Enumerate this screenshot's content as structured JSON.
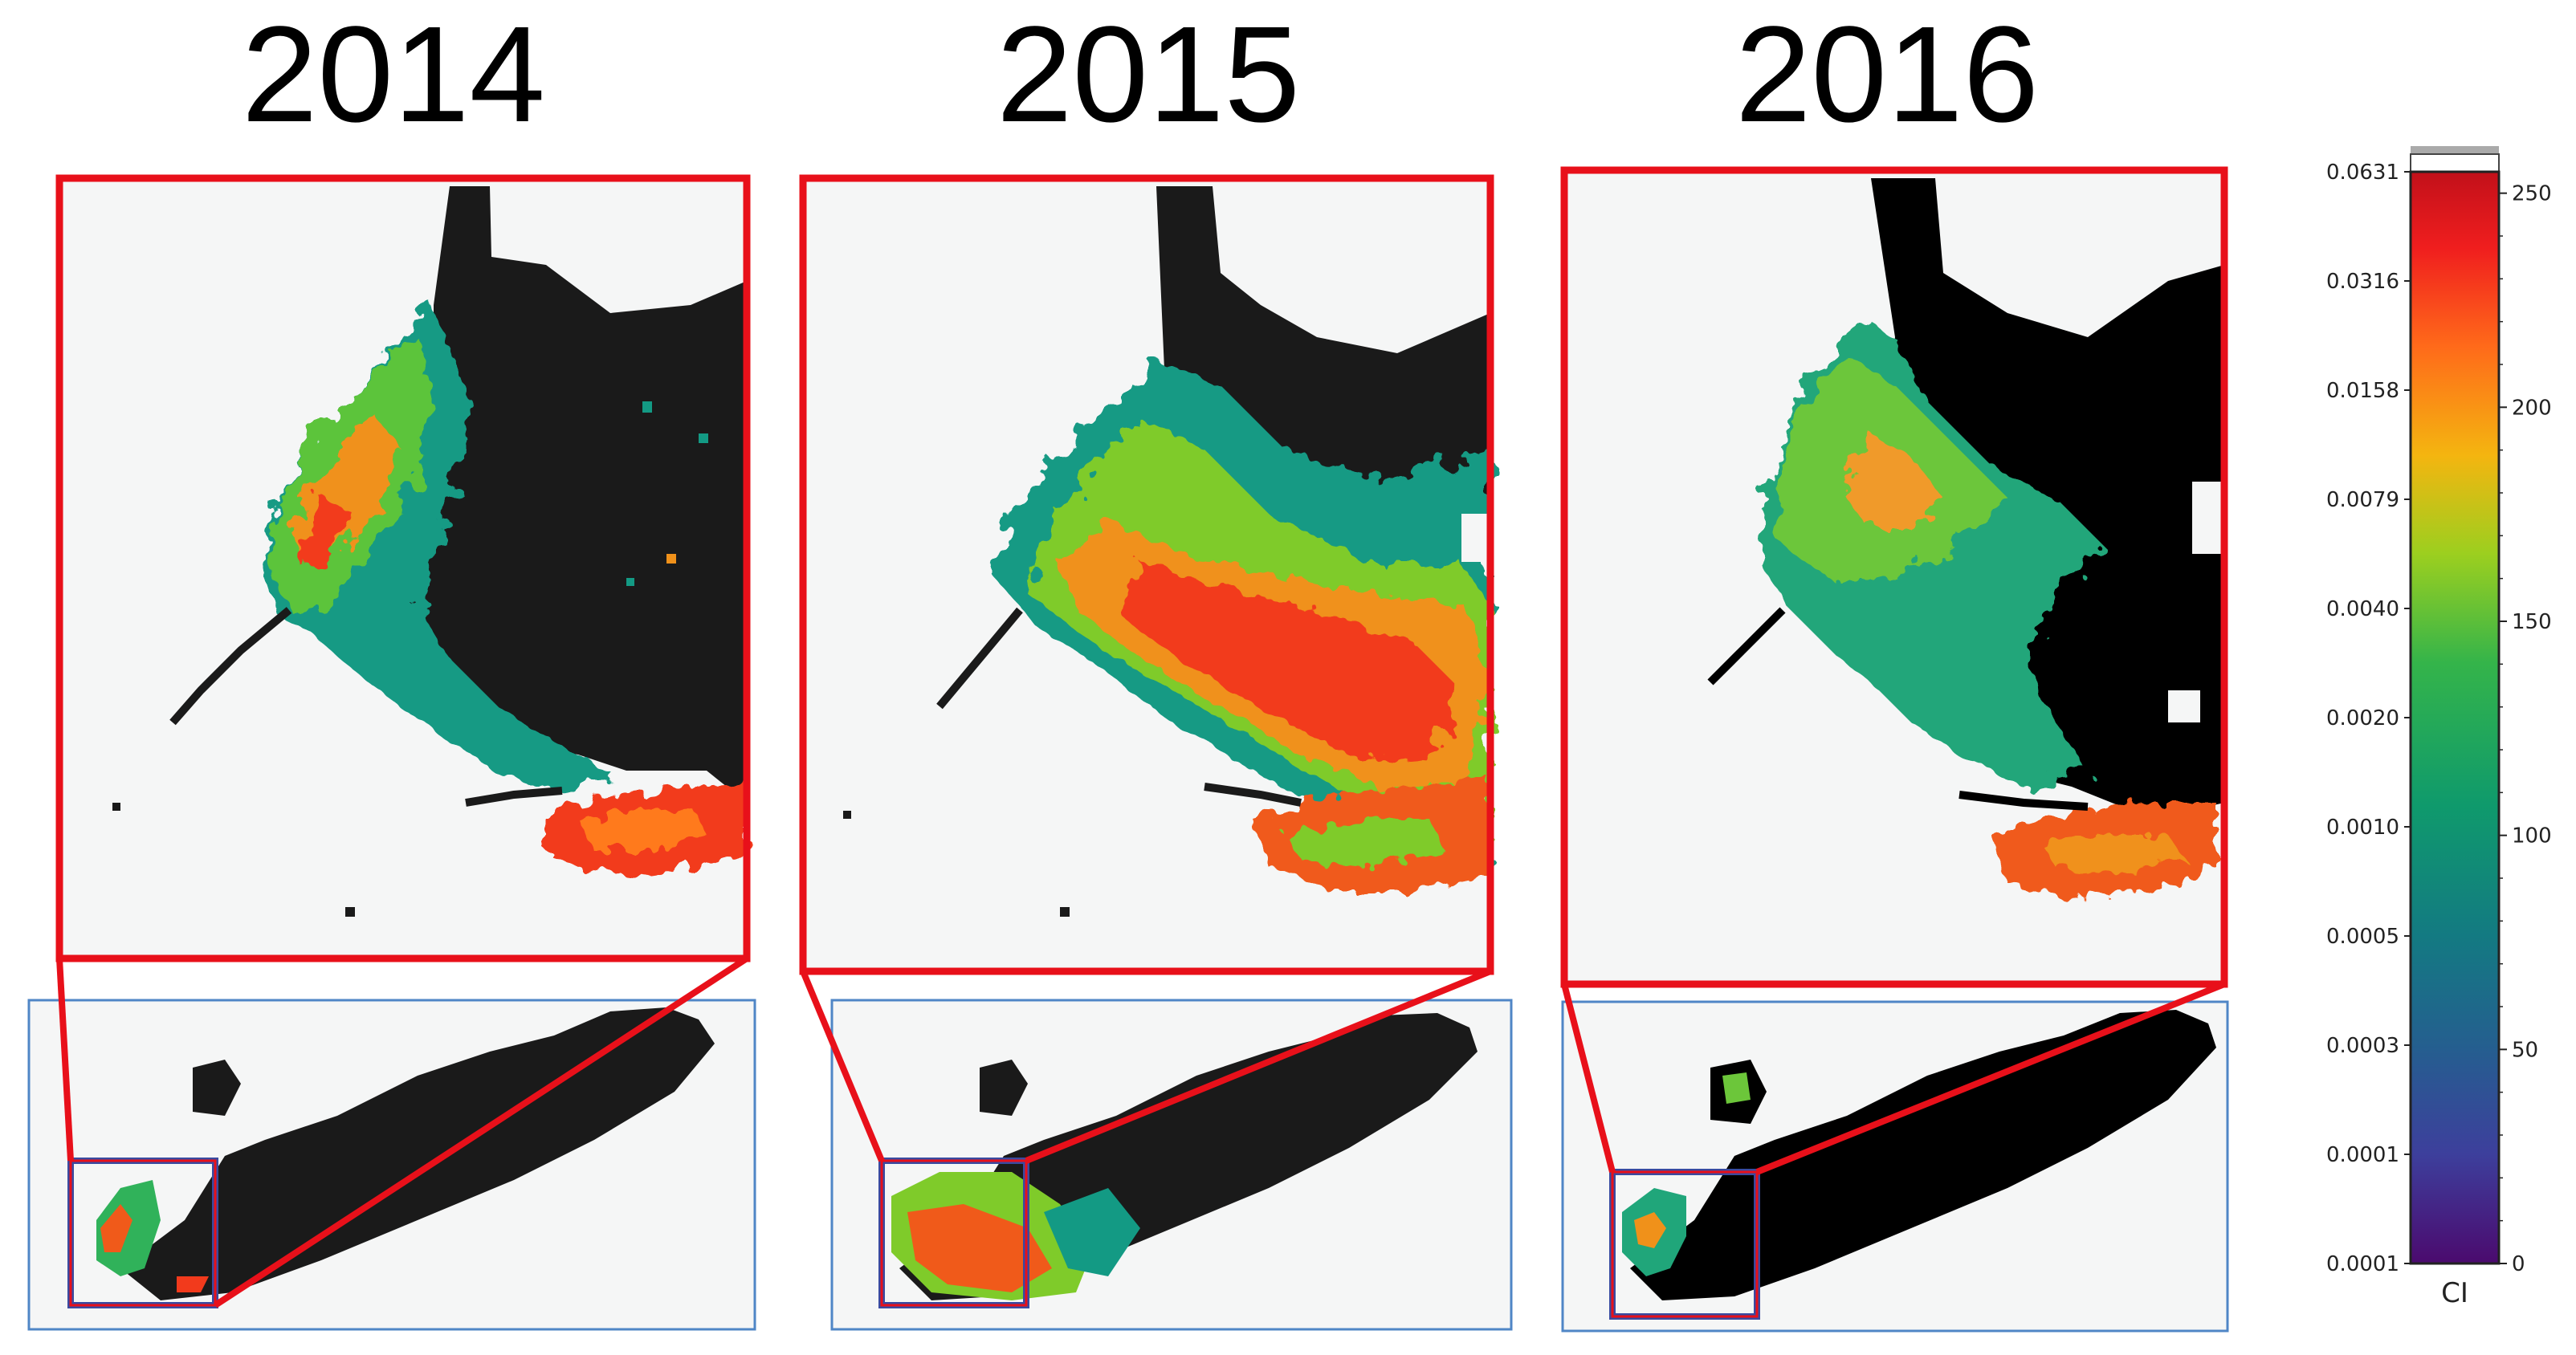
{
  "panels": [
    {
      "year": "2014"
    },
    {
      "year": "2015"
    },
    {
      "year": "2016"
    }
  ],
  "colorbar": {
    "title": "CI",
    "left_ticks": [
      "0.0631",
      "0.0316",
      "0.0158",
      "0.0079",
      "0.0040",
      "0.0020",
      "0.0010",
      "0.0005",
      "0.0003",
      "0.0001",
      "0.0001"
    ],
    "right_ticks": [
      "250",
      "200",
      "150",
      "100",
      "50",
      "0"
    ],
    "stops": [
      "#4b0a6e",
      "#3d3f9c",
      "#245f8f",
      "#137a82",
      "#0f9a6c",
      "#34b44a",
      "#9ccf1f",
      "#f4b510",
      "#ff6a1a",
      "#f01e1e",
      "#c2101a"
    ]
  },
  "colors": {
    "frame": "#e8101a",
    "lake": "#1a1a1a",
    "land": "#f5f6f6",
    "inset_border": "#4f86c6",
    "marker": "#3a4aa0"
  }
}
